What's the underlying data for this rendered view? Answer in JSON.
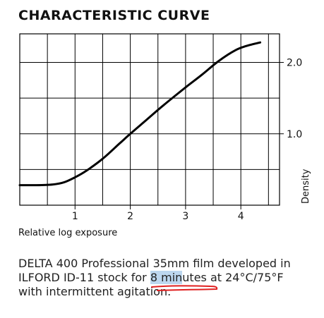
{
  "title": "CHARACTERISTIC CURVE",
  "caption": {
    "line1": "DELTA 400 Professional 35mm film developed in",
    "line2_pre": "ILFORD ID-11 stock for ",
    "line2_hl1": "8 min",
    "line2_hl2": "utes",
    "line2_post": " at 24°C/75°F",
    "line3": "with intermittent agitation."
  },
  "colors": {
    "highlight": "#bcd7ef",
    "underline": "#e02020",
    "grid": "#000000",
    "curve": "#000000"
  },
  "chart_data": {
    "type": "line",
    "xlabel": "Relative log exposure",
    "ylabel": "Density",
    "xlim": [
      0,
      4.7
    ],
    "ylim": [
      0,
      2.4
    ],
    "x_ticks": [
      "1",
      "2",
      "3",
      "4"
    ],
    "x_tick_values": [
      1,
      2,
      3,
      4
    ],
    "y_ticks": [
      "1.0",
      "2.0"
    ],
    "y_tick_values": [
      1.0,
      2.0
    ],
    "grid": true,
    "series": [
      {
        "x": [
          0.0,
          0.3,
          0.6,
          0.8,
          1.0,
          1.2,
          1.5,
          1.8,
          2.0,
          2.3,
          2.6,
          3.0,
          3.3,
          3.6,
          3.9,
          4.1,
          4.35
        ],
        "y": [
          0.28,
          0.28,
          0.29,
          0.32,
          0.39,
          0.48,
          0.65,
          0.86,
          1.0,
          1.2,
          1.4,
          1.65,
          1.83,
          2.02,
          2.17,
          2.23,
          2.28
        ]
      }
    ]
  }
}
